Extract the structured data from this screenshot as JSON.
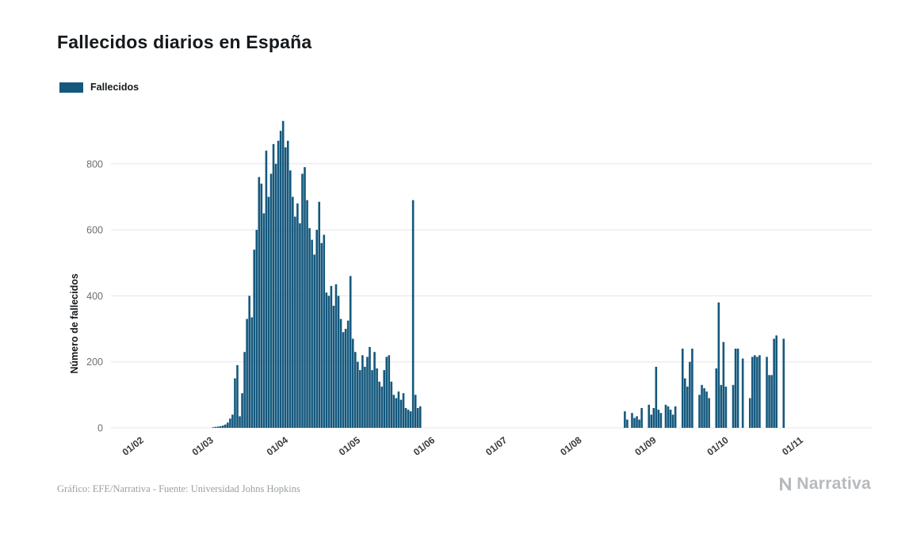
{
  "legend": {
    "label": "Fallecidos"
  },
  "footer": {
    "credit": "Gráfico: EFE/Narrativa - Fuente: Universidad Johns Hopkins"
  },
  "logo": {
    "text": "Narrativa"
  },
  "chart_data": {
    "type": "bar",
    "title": "Fallecidos diarios en España",
    "xlabel": "",
    "ylabel": "Número de fallecidos",
    "series_name": "Fallecidos",
    "bar_color": "#14587d",
    "grid": true,
    "legend_position": "top-left",
    "ylim": [
      0,
      950
    ],
    "y_ticks": [
      0,
      200,
      400,
      600,
      800
    ],
    "x_tick_labels": [
      "01/02",
      "01/03",
      "01/04",
      "01/05",
      "01/06",
      "01/07",
      "01/08",
      "01/09",
      "01/10",
      "01/11"
    ],
    "x_tick_dates": [
      "2020-02-01",
      "2020-03-01",
      "2020-04-01",
      "2020-05-01",
      "2020-06-01",
      "2020-07-01",
      "2020-08-01",
      "2020-09-01",
      "2020-10-01",
      "2020-11-01"
    ],
    "points": [
      [
        "2020-03-03",
        2
      ],
      [
        "2020-03-04",
        3
      ],
      [
        "2020-03-05",
        4
      ],
      [
        "2020-03-06",
        5
      ],
      [
        "2020-03-07",
        7
      ],
      [
        "2020-03-08",
        10
      ],
      [
        "2020-03-09",
        16
      ],
      [
        "2020-03-10",
        28
      ],
      [
        "2020-03-11",
        40
      ],
      [
        "2020-03-12",
        150
      ],
      [
        "2020-03-13",
        190
      ],
      [
        "2020-03-14",
        35
      ],
      [
        "2020-03-15",
        105
      ],
      [
        "2020-03-16",
        230
      ],
      [
        "2020-03-17",
        330
      ],
      [
        "2020-03-18",
        400
      ],
      [
        "2020-03-19",
        335
      ],
      [
        "2020-03-20",
        540
      ],
      [
        "2020-03-21",
        600
      ],
      [
        "2020-03-22",
        760
      ],
      [
        "2020-03-23",
        740
      ],
      [
        "2020-03-24",
        650
      ],
      [
        "2020-03-25",
        840
      ],
      [
        "2020-03-26",
        700
      ],
      [
        "2020-03-27",
        770
      ],
      [
        "2020-03-28",
        860
      ],
      [
        "2020-03-29",
        800
      ],
      [
        "2020-03-30",
        870
      ],
      [
        "2020-03-31",
        900
      ],
      [
        "2020-04-01",
        930
      ],
      [
        "2020-04-02",
        850
      ],
      [
        "2020-04-03",
        870
      ],
      [
        "2020-04-04",
        780
      ],
      [
        "2020-04-05",
        700
      ],
      [
        "2020-04-06",
        640
      ],
      [
        "2020-04-07",
        680
      ],
      [
        "2020-04-08",
        620
      ],
      [
        "2020-04-09",
        770
      ],
      [
        "2020-04-10",
        790
      ],
      [
        "2020-04-11",
        690
      ],
      [
        "2020-04-12",
        605
      ],
      [
        "2020-04-13",
        570
      ],
      [
        "2020-04-14",
        525
      ],
      [
        "2020-04-15",
        600
      ],
      [
        "2020-04-16",
        685
      ],
      [
        "2020-04-17",
        560
      ],
      [
        "2020-04-18",
        585
      ],
      [
        "2020-04-19",
        410
      ],
      [
        "2020-04-20",
        400
      ],
      [
        "2020-04-21",
        430
      ],
      [
        "2020-04-22",
        370
      ],
      [
        "2020-04-23",
        435
      ],
      [
        "2020-04-24",
        400
      ],
      [
        "2020-04-25",
        330
      ],
      [
        "2020-04-26",
        290
      ],
      [
        "2020-04-27",
        300
      ],
      [
        "2020-04-28",
        325
      ],
      [
        "2020-04-29",
        460
      ],
      [
        "2020-04-30",
        270
      ],
      [
        "2020-05-01",
        230
      ],
      [
        "2020-05-02",
        200
      ],
      [
        "2020-05-03",
        175
      ],
      [
        "2020-05-04",
        220
      ],
      [
        "2020-05-05",
        185
      ],
      [
        "2020-05-06",
        215
      ],
      [
        "2020-05-07",
        245
      ],
      [
        "2020-05-08",
        175
      ],
      [
        "2020-05-09",
        230
      ],
      [
        "2020-05-10",
        180
      ],
      [
        "2020-05-11",
        140
      ],
      [
        "2020-05-12",
        125
      ],
      [
        "2020-05-13",
        175
      ],
      [
        "2020-05-14",
        215
      ],
      [
        "2020-05-15",
        220
      ],
      [
        "2020-05-16",
        140
      ],
      [
        "2020-05-17",
        100
      ],
      [
        "2020-05-18",
        90
      ],
      [
        "2020-05-19",
        110
      ],
      [
        "2020-05-20",
        85
      ],
      [
        "2020-05-21",
        105
      ],
      [
        "2020-05-22",
        60
      ],
      [
        "2020-05-23",
        55
      ],
      [
        "2020-05-24",
        50
      ],
      [
        "2020-05-25",
        690
      ],
      [
        "2020-05-26",
        100
      ],
      [
        "2020-05-27",
        60
      ],
      [
        "2020-05-28",
        65
      ],
      [
        "2020-08-21",
        50
      ],
      [
        "2020-08-22",
        25
      ],
      [
        "2020-08-24",
        45
      ],
      [
        "2020-08-25",
        30
      ],
      [
        "2020-08-26",
        35
      ],
      [
        "2020-08-27",
        25
      ],
      [
        "2020-08-28",
        60
      ],
      [
        "2020-08-31",
        70
      ],
      [
        "2020-09-01",
        40
      ],
      [
        "2020-09-02",
        60
      ],
      [
        "2020-09-03",
        185
      ],
      [
        "2020-09-04",
        55
      ],
      [
        "2020-09-05",
        45
      ],
      [
        "2020-09-07",
        70
      ],
      [
        "2020-09-08",
        65
      ],
      [
        "2020-09-09",
        55
      ],
      [
        "2020-09-10",
        40
      ],
      [
        "2020-09-11",
        65
      ],
      [
        "2020-09-14",
        240
      ],
      [
        "2020-09-15",
        150
      ],
      [
        "2020-09-16",
        125
      ],
      [
        "2020-09-17",
        200
      ],
      [
        "2020-09-18",
        240
      ],
      [
        "2020-09-21",
        100
      ],
      [
        "2020-09-22",
        130
      ],
      [
        "2020-09-23",
        120
      ],
      [
        "2020-09-24",
        110
      ],
      [
        "2020-09-25",
        90
      ],
      [
        "2020-09-28",
        180
      ],
      [
        "2020-09-29",
        380
      ],
      [
        "2020-09-30",
        130
      ],
      [
        "2020-10-01",
        260
      ],
      [
        "2020-10-02",
        125
      ],
      [
        "2020-10-05",
        130
      ],
      [
        "2020-10-06",
        240
      ],
      [
        "2020-10-07",
        240
      ],
      [
        "2020-10-09",
        210
      ],
      [
        "2020-10-12",
        90
      ],
      [
        "2020-10-13",
        215
      ],
      [
        "2020-10-14",
        220
      ],
      [
        "2020-10-15",
        215
      ],
      [
        "2020-10-16",
        220
      ],
      [
        "2020-10-19",
        215
      ],
      [
        "2020-10-20",
        160
      ],
      [
        "2020-10-21",
        160
      ],
      [
        "2020-10-22",
        270
      ],
      [
        "2020-10-23",
        280
      ],
      [
        "2020-10-26",
        270
      ]
    ]
  }
}
